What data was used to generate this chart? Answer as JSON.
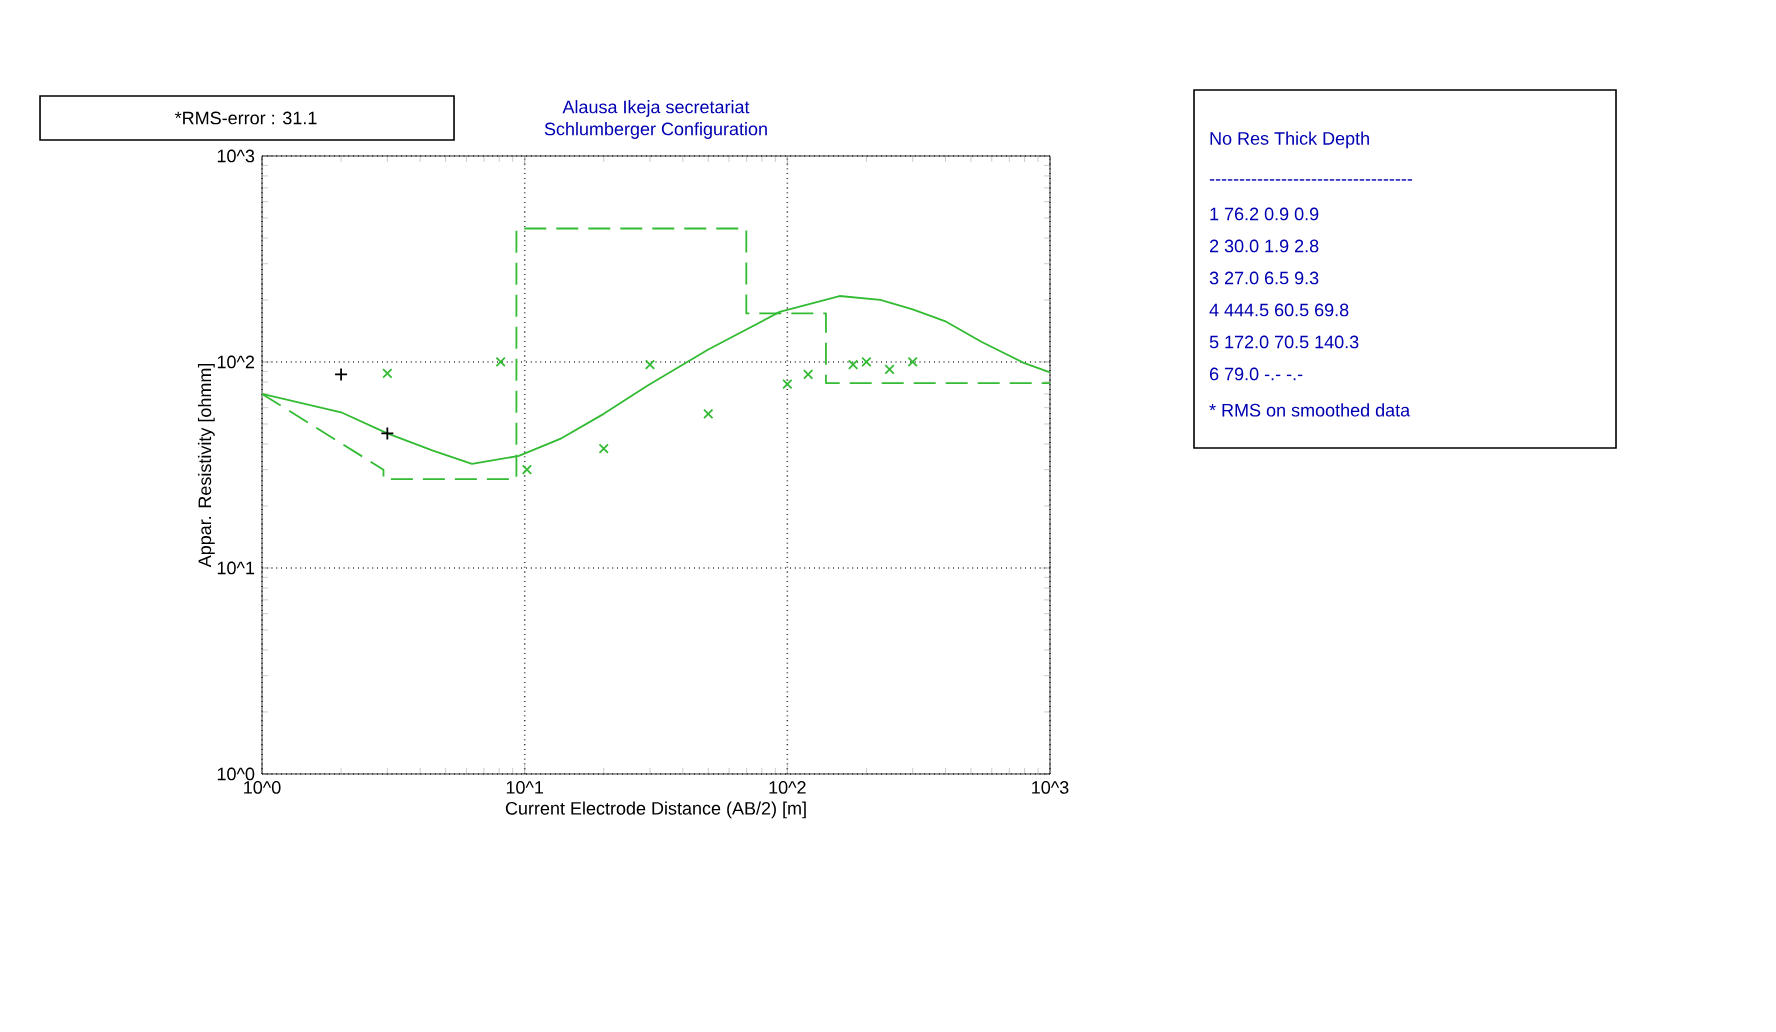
{
  "chart_data": {
    "type": "line",
    "title": "Alausa Ikeja secretariat",
    "subtitle": "Schlumberger Configuration",
    "xlabel": "Current Electrode Distance (AB/2) [m]",
    "ylabel": "Appar. Resistivity [ohmm]",
    "log": "xy",
    "grid": true,
    "xlim": [
      1,
      1000
    ],
    "ylim": [
      1,
      1000
    ],
    "xticks": [
      {
        "value": 1,
        "label": "10^0"
      },
      {
        "value": 10,
        "label": "10^1"
      },
      {
        "value": 100,
        "label": "10^2"
      },
      {
        "value": 1000,
        "label": "10^3"
      }
    ],
    "yticks": [
      {
        "value": 1,
        "label": "10^0"
      },
      {
        "value": 10,
        "label": "10^1"
      },
      {
        "value": 100,
        "label": "10^2"
      },
      {
        "value": 1000,
        "label": "10^3"
      }
    ],
    "series": [
      {
        "color": "#33bb33",
        "line_style": "solid",
        "x": [
          1,
          2,
          3,
          4.5,
          6.3,
          9.5,
          13.8,
          20,
          29.3,
          50,
          93.5,
          158,
          226,
          300,
          398,
          550,
          794,
          1000
        ],
        "values": [
          70,
          57,
          45,
          37,
          32,
          35,
          42.6,
          56,
          76.6,
          115,
          175,
          209,
          200,
          180,
          158,
          125,
          99,
          89
        ]
      },
      {
        "color": "#33bb33",
        "line_style": "dashed",
        "x": [
          1,
          2.9,
          2.9,
          9.3,
          9.3,
          69.8,
          69.8,
          140.3,
          140.3,
          1000
        ],
        "values": [
          70,
          30,
          27,
          27,
          444.5,
          444.5,
          172,
          172,
          79,
          79
        ]
      },
      {
        "type": "scatter",
        "color": "#33bb33",
        "marker": "cross",
        "x": [
          3,
          8.1,
          10.2,
          20,
          30,
          50,
          100,
          120,
          178,
          200,
          245,
          300
        ],
        "values": [
          88,
          100,
          30,
          38,
          97,
          56,
          78,
          87,
          97,
          100,
          92,
          100
        ]
      },
      {
        "type": "scatter",
        "color": "#000000",
        "marker": "plus",
        "x": [
          2,
          3
        ],
        "values": [
          87,
          45
        ]
      }
    ],
    "annotations": [
      "*RMS-error : 31.1",
      "No Res Thick Depth",
      "----------------------------------",
      "1 76.2 0.9 0.9",
      "2 30.0 1.9 2.8",
      "3 27.0 6.5 9.3",
      "4 444.5 60.5 69.8",
      "5 172.0 70.5 140.3",
      "6 79.0 -.- -.-",
      "* RMS on smoothed data"
    ]
  }
}
